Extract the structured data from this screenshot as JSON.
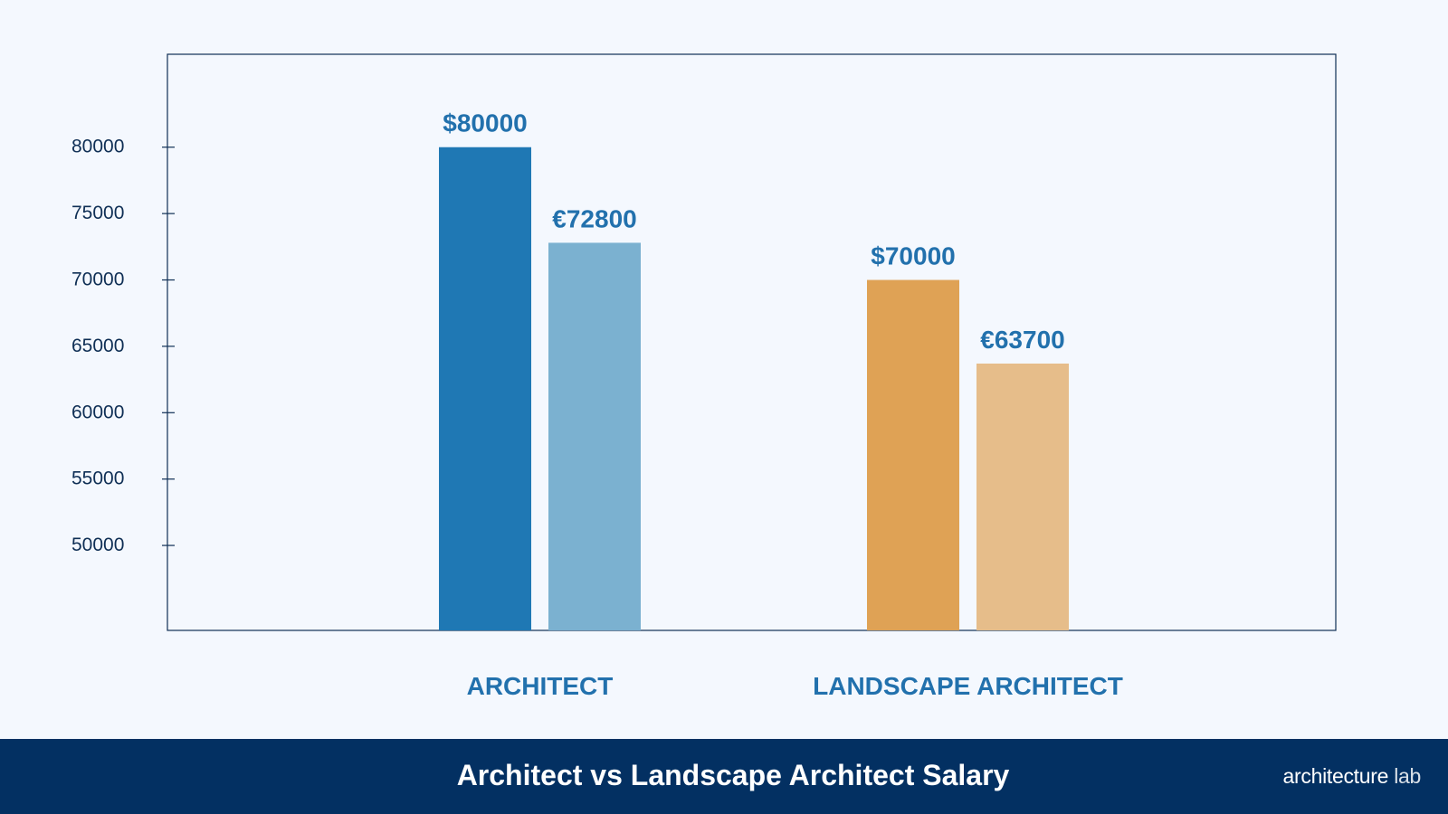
{
  "chart_data": {
    "type": "bar",
    "title": "Architect vs Landscape Architect Salary",
    "categories": [
      "ARCHITECT",
      "LANDSCAPE ARCHITECT"
    ],
    "series": [
      {
        "values": [
          80000,
          70000
        ],
        "labels": [
          "$80000",
          "$70000"
        ],
        "colors": [
          "#1f78b4",
          "#dfa255"
        ]
      },
      {
        "values": [
          72800,
          63700
        ],
        "labels": [
          "€72800",
          "€63700"
        ],
        "colors": [
          "#7bb1d0",
          "#e6bd8a"
        ]
      }
    ],
    "yticks": [
      50000,
      55000,
      60000,
      65000,
      70000,
      75000,
      80000
    ],
    "ylim": [
      43600,
      87000
    ],
    "grid": false,
    "label_color": "#2271ad",
    "axis_color": "#0f2f55"
  },
  "footer": {
    "title": "Architect vs Landscape Architect Salary",
    "logo_main": "architecture",
    "logo_light": "lab"
  }
}
